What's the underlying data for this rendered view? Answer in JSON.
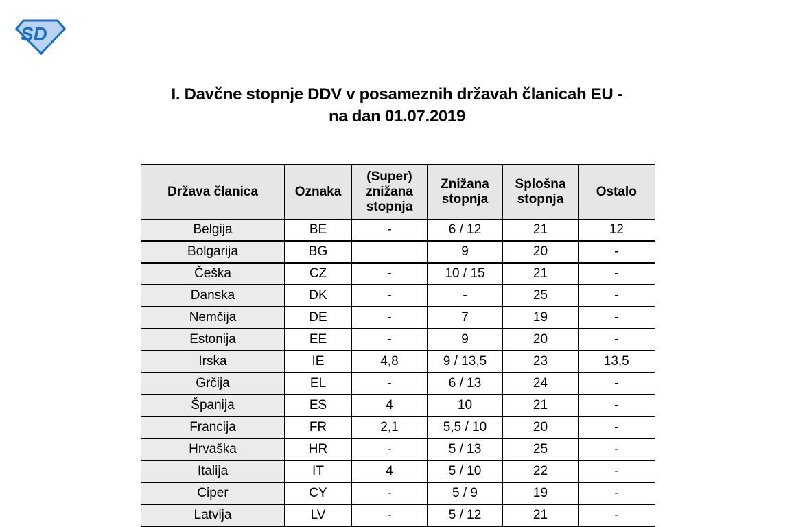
{
  "logo": {
    "text": "SD",
    "colors": {
      "primary": "#1a6fc4",
      "light": "#b9d3f0"
    }
  },
  "title": {
    "line1": "I. Davčne stopnje DDV v posameznih državah članicah EU -",
    "line2": "na dan 01.07.2019"
  },
  "table": {
    "headers": [
      "Država članica",
      "Oznaka",
      "(Super) znižana stopnja",
      "Znižana stopnja",
      "Splošna stopnja",
      "Ostalo"
    ],
    "rows": [
      [
        "Belgija",
        "BE",
        "-",
        "6 / 12",
        "21",
        "12"
      ],
      [
        "Bolgarija",
        "BG",
        "",
        "9",
        "20",
        "-"
      ],
      [
        "Češka",
        "CZ",
        "-",
        "10 / 15",
        "21",
        "-"
      ],
      [
        "Danska",
        "DK",
        "-",
        "-",
        "25",
        "-"
      ],
      [
        "Nemčija",
        "DE",
        "-",
        "7",
        "19",
        "-"
      ],
      [
        "Estonija",
        "EE",
        "-",
        "9",
        "20",
        "-"
      ],
      [
        "Irska",
        "IE",
        "4,8",
        "9 / 13,5",
        "23",
        "13,5"
      ],
      [
        "Grčija",
        "EL",
        "-",
        "6 / 13",
        "24",
        "-"
      ],
      [
        "Španija",
        "ES",
        "4",
        "10",
        "21",
        "-"
      ],
      [
        "Francija",
        "FR",
        "2,1",
        "5,5 / 10",
        "20",
        "-"
      ],
      [
        "Hrvaška",
        "HR",
        "-",
        "5 / 13",
        "25",
        "-"
      ],
      [
        "Italija",
        "IT",
        "4",
        "5 / 10",
        "22",
        "-"
      ],
      [
        "Ciper",
        "CY",
        "-",
        "5 / 9",
        "19",
        "-"
      ],
      [
        "Latvija",
        "LV",
        "-",
        "5 / 12",
        "21",
        "-"
      ]
    ]
  }
}
